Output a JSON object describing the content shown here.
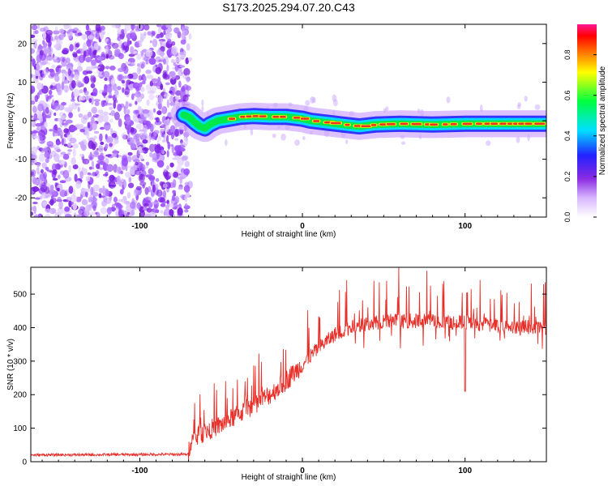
{
  "figure_title": "S173.2025.294.07.20.C43",
  "colors": {
    "snr_line": "#e8302a",
    "spectrogram_noise": "#7b1fe0",
    "spectrogram_signal": "#e8302a"
  },
  "chart_data": [
    {
      "type": "heatmap",
      "title": "S173.2025.294.07.20.C43",
      "xlabel": "Height of straight line (km)",
      "ylabel": "Frequency (Hz)",
      "xlim": [
        -167,
        150
      ],
      "ylim": [
        -25,
        25
      ],
      "x_ticks": [
        -100,
        0,
        100
      ],
      "y_ticks": [
        -20,
        -10,
        0,
        10,
        20
      ],
      "colorbar": {
        "label": "Normalized spectral amplitude",
        "range": [
          0,
          0.95
        ],
        "ticks": [
          "0.0",
          "0.2",
          "0.4",
          "0.6",
          "0.8"
        ],
        "tick_values": [
          0,
          0.2,
          0.4,
          0.6,
          0.8
        ]
      },
      "noise_region_x": [
        -167,
        -69
      ],
      "signal_track": {
        "x": [
          -73,
          -70,
          -66,
          -63,
          -60,
          -57,
          -52,
          -45,
          -38,
          -30,
          -20,
          -10,
          0,
          5,
          15,
          25,
          35,
          45,
          60,
          80,
          100,
          120,
          150
        ],
        "frequency": [
          1.5,
          1.0,
          -0.5,
          -1.5,
          -2.0,
          -1.0,
          0.0,
          0.5,
          1.0,
          1.2,
          1.0,
          1.0,
          0.5,
          0.0,
          -0.5,
          -1.0,
          -1.5,
          -1.0,
          -0.8,
          -1.0,
          -0.8,
          -0.8,
          -0.8
        ]
      }
    },
    {
      "type": "line",
      "xlabel": "Height of straight line (km)",
      "ylabel": "SNR (10 * v/v)",
      "xlim": [
        -167,
        150
      ],
      "ylim": [
        0,
        580
      ],
      "x_ticks": [
        -100,
        0,
        100
      ],
      "y_ticks": [
        0,
        100,
        200,
        300,
        400,
        500
      ],
      "series": [
        {
          "name": "SNR",
          "trend_x": [
            -167,
            -70,
            -69,
            -60,
            -50,
            -40,
            -30,
            -20,
            -10,
            0,
            10,
            20,
            30,
            40,
            50,
            60,
            80,
            100,
            120,
            150
          ],
          "trend_y": [
            20,
            22,
            60,
            90,
            110,
            140,
            170,
            200,
            240,
            290,
            340,
            380,
            400,
            410,
            420,
            420,
            420,
            415,
            405,
            400
          ]
        }
      ]
    }
  ]
}
